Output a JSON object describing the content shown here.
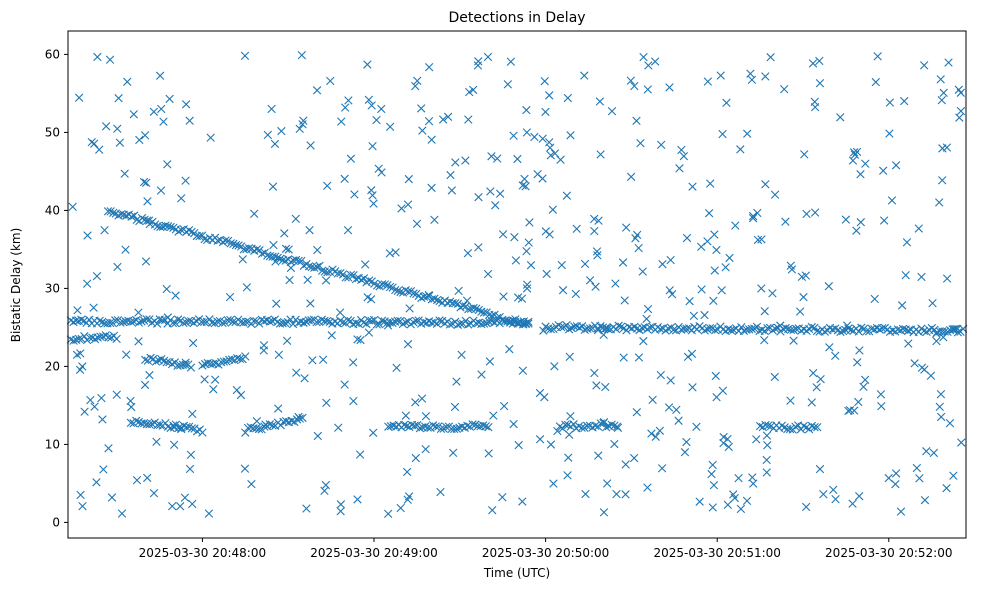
{
  "chart_data": {
    "type": "scatter",
    "title": "Detections in Delay",
    "xlabel": "Time (UTC)",
    "ylabel": "Bistatic Delay (km)",
    "marker": "x",
    "color": "#1f77b4",
    "x_range": [
      "2025-03-30 20:47:13",
      "2025-03-30 20:52:27"
    ],
    "ylim": [
      -2,
      63
    ],
    "grid": false,
    "x_ticks": [
      "2025-03-30 20:48:00",
      "2025-03-30 20:49:00",
      "2025-03-30 20:50:00",
      "2025-03-30 20:51:00",
      "2025-03-30 20:52:00"
    ],
    "y_ticks": [
      0,
      10,
      20,
      30,
      40,
      50,
      60
    ],
    "tracks": [
      {
        "x_start": "2025-03-30 20:47:27",
        "x_end": "2025-03-30 20:49:54",
        "y_start": 40,
        "y_end": 25.3
      },
      {
        "x_start": "2025-03-30 20:47:14",
        "x_end": "2025-03-30 20:49:54",
        "y_start": 25.8,
        "y_end": 25.6
      },
      {
        "x_start": "2025-03-30 20:50:00",
        "x_end": "2025-03-30 20:52:26",
        "y_start": 25,
        "y_end": 24.6
      },
      {
        "x_start": "2025-03-30 20:47:14",
        "x_end": "2025-03-30 20:47:30",
        "y_start": 23.5,
        "y_end": 23.8
      },
      {
        "x_start": "2025-03-30 20:47:40",
        "x_end": "2025-03-30 20:47:56",
        "y_start": 21,
        "y_end": 20
      },
      {
        "x_start": "2025-03-30 20:48:00",
        "x_end": "2025-03-30 20:48:15",
        "y_start": 20,
        "y_end": 21
      },
      {
        "x_start": "2025-03-30 20:47:35",
        "x_end": "2025-03-30 20:48:00",
        "y_start": 13,
        "y_end": 11.8
      },
      {
        "x_start": "2025-03-30 20:48:15",
        "x_end": "2025-03-30 20:48:35",
        "y_start": 11.8,
        "y_end": 13.2
      },
      {
        "x_start": "2025-03-30 20:49:05",
        "x_end": "2025-03-30 20:49:40",
        "y_start": 12.2,
        "y_end": 12.3
      },
      {
        "x_start": "2025-03-30 20:50:05",
        "x_end": "2025-03-30 20:50:25",
        "y_start": 12.3,
        "y_end": 12.5
      },
      {
        "x_start": "2025-03-30 20:51:15",
        "x_end": "2025-03-30 20:51:35",
        "y_start": 12.3,
        "y_end": 12.1
      }
    ],
    "clutter": {
      "count": 560,
      "x_range": [
        "2025-03-30 20:47:14",
        "2025-03-30 20:52:26"
      ],
      "y_range": [
        1,
        60
      ]
    }
  }
}
